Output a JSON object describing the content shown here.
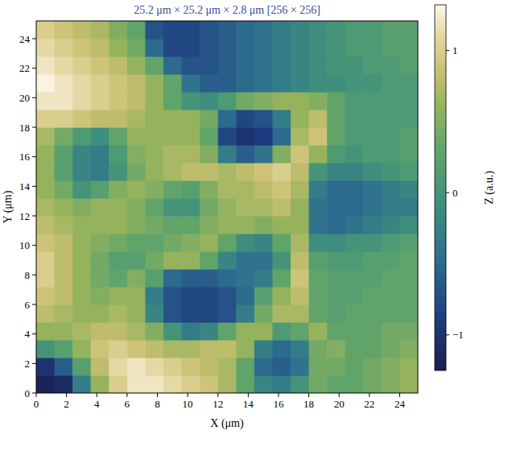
{
  "chart_data": {
    "type": "heatmap",
    "title": "25.2 μm × 25.2 μm × 2.8 μm [256 × 256]",
    "xlabel": "X (μm)",
    "ylabel": "Y (μm)",
    "xlim": [
      0,
      25.2
    ],
    "ylim": [
      0,
      25.2
    ],
    "xticks": [
      0,
      2,
      4,
      6,
      8,
      10,
      12,
      14,
      16,
      18,
      20,
      22,
      24
    ],
    "yticks": [
      0,
      2,
      4,
      6,
      8,
      10,
      12,
      14,
      16,
      18,
      20,
      22,
      24
    ],
    "grid": false,
    "xbins": [
      0,
      1.2,
      2.4,
      3.6,
      4.8,
      6,
      7.2,
      8.4,
      9.6,
      10.8,
      12,
      13.2,
      14.4,
      15.6,
      16.8,
      18,
      19.2,
      20.4,
      21.6,
      22.8,
      24,
      25.2
    ],
    "ybins": [
      0,
      1.2,
      2.4,
      3.6,
      4.8,
      6,
      7.2,
      8.4,
      9.6,
      10.8,
      12,
      13.2,
      14.4,
      15.6,
      16.8,
      18,
      19.2,
      20.4,
      21.6,
      22.8,
      24,
      25.2
    ],
    "z": [
      [
        -1.2,
        -1.1,
        -0.3,
        0.6,
        1.0,
        1.2,
        1.2,
        1.1,
        1.0,
        0.9,
        0.7,
        0.3,
        -0.2,
        -0.3,
        0.0,
        0.4,
        0.3,
        0.3,
        0.4,
        0.5,
        0.6
      ],
      [
        -1.0,
        -0.6,
        0.2,
        0.8,
        1.1,
        1.2,
        1.1,
        1.0,
        0.9,
        0.8,
        0.7,
        0.3,
        -0.5,
        -0.6,
        -0.4,
        0.4,
        0.4,
        0.3,
        0.4,
        0.5,
        0.6
      ],
      [
        0.0,
        0.2,
        0.6,
        0.9,
        1.0,
        0.9,
        0.8,
        0.7,
        0.7,
        0.8,
        0.8,
        0.6,
        -0.3,
        -0.5,
        -0.3,
        0.4,
        0.5,
        0.3,
        0.3,
        0.4,
        0.5
      ],
      [
        0.6,
        0.6,
        0.7,
        0.8,
        0.8,
        0.7,
        0.5,
        0.0,
        -0.3,
        -0.2,
        0.3,
        0.6,
        0.6,
        0.1,
        0.3,
        0.6,
        0.3,
        0.3,
        0.3,
        0.4,
        0.4
      ],
      [
        0.8,
        0.7,
        0.6,
        0.6,
        0.7,
        0.6,
        -0.2,
        -0.7,
        -0.8,
        -0.8,
        -0.7,
        -0.3,
        0.4,
        0.7,
        0.7,
        0.3,
        0.2,
        0.3,
        0.3,
        0.3,
        0.3
      ],
      [
        0.9,
        0.8,
        0.6,
        0.5,
        0.6,
        0.6,
        -0.3,
        -0.7,
        -0.8,
        -0.8,
        -0.7,
        -0.5,
        0.2,
        0.6,
        0.8,
        0.3,
        0.2,
        0.2,
        0.3,
        0.3,
        0.3
      ],
      [
        1.0,
        0.8,
        0.6,
        0.4,
        0.3,
        0.5,
        0.2,
        -0.5,
        -0.6,
        -0.6,
        -0.5,
        -0.4,
        -0.3,
        0.3,
        0.9,
        0.3,
        0.2,
        0.2,
        0.2,
        0.3,
        0.3
      ],
      [
        1.0,
        0.8,
        0.6,
        0.4,
        0.2,
        0.2,
        0.4,
        0.6,
        0.6,
        0.3,
        -0.2,
        -0.4,
        -0.4,
        0.0,
        0.8,
        0.2,
        0.1,
        0.1,
        0.2,
        0.2,
        0.3
      ],
      [
        0.9,
        0.8,
        0.6,
        0.5,
        0.4,
        0.3,
        0.3,
        0.4,
        0.5,
        0.6,
        0.3,
        -0.1,
        -0.2,
        0.3,
        0.7,
        -0.1,
        -0.1,
        0.0,
        0.0,
        0.1,
        0.2
      ],
      [
        0.8,
        0.7,
        0.6,
        0.6,
        0.6,
        0.5,
        0.4,
        0.3,
        0.3,
        0.5,
        0.6,
        0.6,
        0.5,
        0.6,
        0.6,
        -0.4,
        -0.5,
        -0.4,
        -0.3,
        -0.2,
        -0.1
      ],
      [
        0.7,
        0.6,
        0.5,
        0.6,
        0.6,
        0.5,
        0.3,
        0.0,
        0.0,
        0.4,
        0.6,
        0.7,
        0.7,
        0.8,
        0.6,
        -0.4,
        -0.5,
        -0.5,
        -0.4,
        -0.3,
        -0.3
      ],
      [
        0.6,
        0.4,
        0.0,
        0.2,
        0.5,
        0.6,
        0.5,
        0.3,
        0.2,
        0.5,
        0.7,
        0.7,
        0.8,
        0.9,
        0.7,
        -0.3,
        -0.5,
        -0.5,
        -0.4,
        -0.3,
        -0.2
      ],
      [
        0.6,
        0.2,
        -0.2,
        -0.3,
        0.0,
        0.4,
        0.6,
        0.7,
        0.8,
        0.8,
        0.7,
        0.8,
        0.9,
        1.0,
        0.8,
        0.0,
        -0.2,
        -0.2,
        -0.1,
        0.0,
        0.1
      ],
      [
        0.6,
        0.2,
        -0.2,
        -0.3,
        0.1,
        0.5,
        0.6,
        0.7,
        0.7,
        0.5,
        -0.3,
        -0.6,
        -0.4,
        0.5,
        0.9,
        0.6,
        0.1,
        0.0,
        0.1,
        0.1,
        0.2
      ],
      [
        0.7,
        0.4,
        0.1,
        -0.1,
        0.3,
        0.6,
        0.6,
        0.6,
        0.6,
        0.3,
        -0.8,
        -1.0,
        -0.9,
        -0.5,
        0.7,
        0.9,
        0.3,
        0.1,
        0.1,
        0.1,
        0.2
      ],
      [
        1.0,
        1.0,
        0.9,
        0.8,
        0.8,
        0.7,
        0.6,
        0.6,
        0.6,
        0.4,
        -0.5,
        -0.8,
        -0.7,
        -0.3,
        0.6,
        0.8,
        0.3,
        0.1,
        0.1,
        0.1,
        0.1
      ],
      [
        1.2,
        1.2,
        1.1,
        1.0,
        0.9,
        0.8,
        0.6,
        0.3,
        0.0,
        -0.1,
        0.1,
        0.4,
        0.5,
        0.6,
        0.6,
        0.5,
        0.3,
        0.1,
        0.1,
        0.1,
        0.1
      ],
      [
        1.3,
        1.2,
        1.1,
        1.0,
        0.9,
        0.8,
        0.6,
        0.3,
        -0.4,
        -0.6,
        -0.6,
        -0.5,
        -0.4,
        -0.3,
        -0.2,
        -0.1,
        -0.1,
        0.0,
        0.0,
        0.1,
        0.1
      ],
      [
        1.2,
        1.1,
        1.0,
        0.9,
        0.8,
        0.6,
        0.3,
        -0.5,
        -0.7,
        -0.7,
        -0.6,
        -0.5,
        -0.4,
        -0.3,
        -0.2,
        -0.1,
        0.0,
        0.0,
        0.1,
        0.1,
        0.2
      ],
      [
        1.1,
        1.0,
        0.9,
        0.8,
        0.6,
        0.4,
        -0.5,
        -0.8,
        -0.8,
        -0.7,
        -0.6,
        -0.5,
        -0.4,
        -0.3,
        -0.2,
        -0.1,
        0.0,
        0.1,
        0.1,
        0.2,
        0.2
      ],
      [
        1.0,
        0.9,
        0.8,
        0.7,
        0.5,
        0.3,
        -0.7,
        -0.8,
        -0.8,
        -0.7,
        -0.6,
        -0.5,
        -0.4,
        -0.3,
        -0.2,
        -0.1,
        0.0,
        0.1,
        0.1,
        0.2,
        0.2
      ]
    ],
    "colorbar": {
      "label": "Z (a.u.)",
      "range": [
        -1.25,
        1.32
      ],
      "ticks": [
        {
          "value": -1,
          "label": "−1"
        },
        0,
        1
      ]
    }
  }
}
